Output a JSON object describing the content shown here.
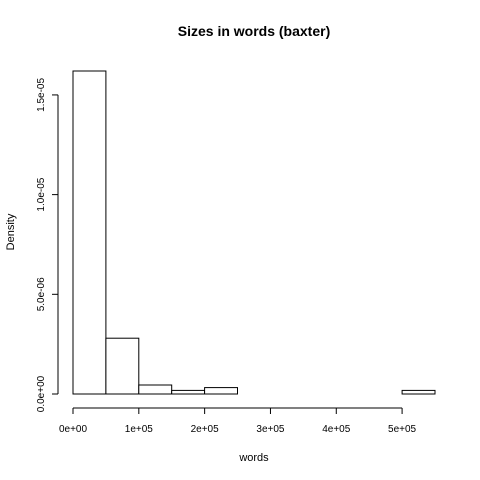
{
  "chart_data": {
    "type": "bar",
    "title": "Sizes in words (baxter)",
    "xlabel": "words",
    "ylabel": "Density",
    "bins": [
      {
        "start": 0,
        "end": 50000,
        "density": 1.62e-05
      },
      {
        "start": 50000,
        "end": 100000,
        "density": 2.8e-06
      },
      {
        "start": 100000,
        "end": 150000,
        "density": 4.5e-07
      },
      {
        "start": 150000,
        "end": 200000,
        "density": 1.8e-07
      },
      {
        "start": 200000,
        "end": 250000,
        "density": 3.2e-07
      },
      {
        "start": 250000,
        "end": 300000,
        "density": 0
      },
      {
        "start": 300000,
        "end": 350000,
        "density": 0
      },
      {
        "start": 350000,
        "end": 400000,
        "density": 0
      },
      {
        "start": 400000,
        "end": 450000,
        "density": 0
      },
      {
        "start": 450000,
        "end": 500000,
        "density": 0
      },
      {
        "start": 500000,
        "end": 550000,
        "density": 1.8e-07
      }
    ],
    "xlim": [
      0,
      550000
    ],
    "ylim": [
      0,
      1.62e-05
    ],
    "x_ticks": [
      {
        "value": 0,
        "label": "0e+00"
      },
      {
        "value": 100000,
        "label": "1e+05"
      },
      {
        "value": 200000,
        "label": "2e+05"
      },
      {
        "value": 300000,
        "label": "3e+05"
      },
      {
        "value": 400000,
        "label": "4e+05"
      },
      {
        "value": 500000,
        "label": "5e+05"
      }
    ],
    "y_ticks": [
      {
        "value": 0,
        "label": "0.0e+00"
      },
      {
        "value": 5e-06,
        "label": "5.0e-06"
      },
      {
        "value": 1e-05,
        "label": "1.0e-05"
      },
      {
        "value": 1.5e-05,
        "label": "1.5e-05"
      }
    ],
    "grid": false,
    "colors": {
      "bar_fill": "#ffffff",
      "bar_stroke": "#000000"
    }
  }
}
